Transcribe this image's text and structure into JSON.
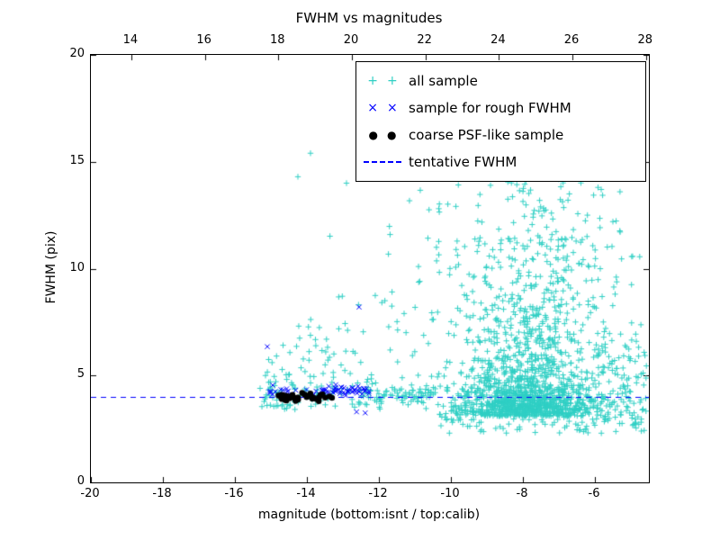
{
  "figure": {
    "title": "FWHM vs magnitudes",
    "xlabel": "magnitude (bottom:isnt / top:calib)",
    "ylabel": "FWHM (pix)"
  },
  "legend": {
    "position": "upper right",
    "items": [
      {
        "label": "all sample",
        "marker": "plus",
        "color": "#2fcfc4"
      },
      {
        "label": "sample for rough FWHM",
        "marker": "x",
        "color": "#0000ff"
      },
      {
        "label": "coarse PSF-like sample",
        "marker": "dot",
        "color": "#000000"
      },
      {
        "label": "tentative FWHM",
        "marker": "dashed",
        "color": "#0000ff"
      }
    ]
  },
  "chart_data": {
    "type": "scatter",
    "title": "FWHM vs magnitudes",
    "xlabel": "magnitude (bottom:isnt / top:calib)",
    "ylabel": "FWHM (pix)",
    "xlim": [
      -20,
      -4.5
    ],
    "ylim": [
      0,
      20
    ],
    "top_axis_lim": [
      12.9,
      28.08
    ],
    "x_ticks": [
      -20,
      -18,
      -16,
      -14,
      -12,
      -10,
      -8,
      -6
    ],
    "top_x_ticks": [
      14,
      16,
      18,
      20,
      22,
      24,
      26,
      28
    ],
    "y_ticks": [
      0,
      5,
      10,
      15,
      20
    ],
    "grid": false,
    "legend_position": "upper right",
    "tentative_fwhm_y": 4.0,
    "series": [
      {
        "name": "all sample",
        "marker": "plus",
        "color": "#2fcfc4",
        "clusters": [
          {
            "n": 55,
            "x": {
              "type": "uniform",
              "min": -15.25,
              "max": -14.3
            },
            "y": {
              "type": "exp",
              "base": 3.4,
              "scale": 1.1,
              "max": 8.2
            }
          },
          {
            "n": 45,
            "x": {
              "type": "uniform",
              "min": -14.3,
              "max": -13.35
            },
            "y": {
              "type": "exp",
              "base": 3.5,
              "scale": 2.4,
              "max": 13.5
            }
          },
          {
            "n": 55,
            "x": {
              "type": "uniform",
              "min": -13.35,
              "max": -11.9
            },
            "y": {
              "type": "exp",
              "base": 3.4,
              "scale": 1.6,
              "max": 12.0
            }
          },
          {
            "n": 75,
            "x": {
              "type": "uniform",
              "min": -12.3,
              "max": -10.35
            },
            "y": {
              "type": "gauss",
              "mean": 4.05,
              "sd": 0.22
            }
          },
          {
            "n": 35,
            "x": {
              "type": "uniform",
              "min": -11.9,
              "max": -10.3
            },
            "y": {
              "type": "uniform",
              "min": 4.6,
              "max": 13.8
            }
          },
          {
            "n": 1250,
            "x": {
              "type": "gauss",
              "mean": -7.9,
              "sd": 1.05,
              "min": -10.4,
              "max": -4.55
            },
            "y": {
              "type": "exp",
              "base": 3.1,
              "scale": 1.25,
              "max": 9.0
            }
          },
          {
            "n": 280,
            "x": {
              "type": "gauss",
              "mean": -7.7,
              "sd": 1.2,
              "min": -10.4,
              "max": -4.55
            },
            "y": {
              "type": "uniform",
              "min": 6.5,
              "max": 11.5
            }
          },
          {
            "n": 110,
            "x": {
              "type": "gauss",
              "mean": -7.9,
              "sd": 1.4,
              "min": -10.4,
              "max": -4.6
            },
            "y": {
              "type": "uniform",
              "min": 11.0,
              "max": 15.2
            }
          },
          {
            "n": 90,
            "x": {
              "type": "uniform",
              "min": -6.1,
              "max": -4.55
            },
            "y": {
              "type": "uniform",
              "min": 2.9,
              "max": 7.0
            }
          },
          {
            "n": 85,
            "x": {
              "type": "uniform",
              "min": -10.3,
              "max": -4.6
            },
            "y": {
              "type": "uniform",
              "min": 2.3,
              "max": 3.1
            }
          }
        ],
        "points": [
          [
            -13.9,
            15.4
          ],
          [
            -14.25,
            14.3
          ],
          [
            -12.9,
            14.0
          ],
          [
            -11.6,
            14.4
          ],
          [
            -9.4,
            14.6
          ],
          [
            -8.9,
            13.9
          ],
          [
            -5.5,
            12.2
          ],
          [
            -15.3,
            4.4
          ],
          [
            -15.15,
            5.0
          ],
          [
            -4.85,
            6.6
          ],
          [
            -4.8,
            4.9
          ],
          [
            -10.9,
            10.1
          ],
          [
            -11.3,
            7.9
          ]
        ]
      },
      {
        "name": "sample for rough FWHM",
        "marker": "x",
        "color": "#0000ff",
        "clusters": [
          {
            "n": 48,
            "x": {
              "type": "uniform",
              "min": -13.6,
              "max": -12.25
            },
            "y": {
              "type": "gauss",
              "mean": 4.3,
              "sd": 0.12
            }
          },
          {
            "n": 14,
            "x": {
              "type": "uniform",
              "min": -15.05,
              "max": -13.6
            },
            "y": {
              "type": "gauss",
              "mean": 4.2,
              "sd": 0.16
            }
          }
        ],
        "points": [
          [
            -15.1,
            6.35
          ],
          [
            -12.55,
            8.2
          ],
          [
            -12.62,
            3.3
          ],
          [
            -12.38,
            3.25
          ],
          [
            -14.95,
            4.55
          ]
        ]
      },
      {
        "name": "coarse PSF-like sample",
        "marker": "dot",
        "color": "#000000",
        "clusters": [
          {
            "n": 44,
            "x": {
              "type": "uniform",
              "min": -14.85,
              "max": -13.3
            },
            "y": {
              "type": "gauss",
              "mean": 4.0,
              "sd": 0.09
            }
          }
        ],
        "points": []
      },
      {
        "name": "tentative FWHM",
        "marker": "dashed-line",
        "color": "#0000ff",
        "y": 4.0
      }
    ]
  }
}
